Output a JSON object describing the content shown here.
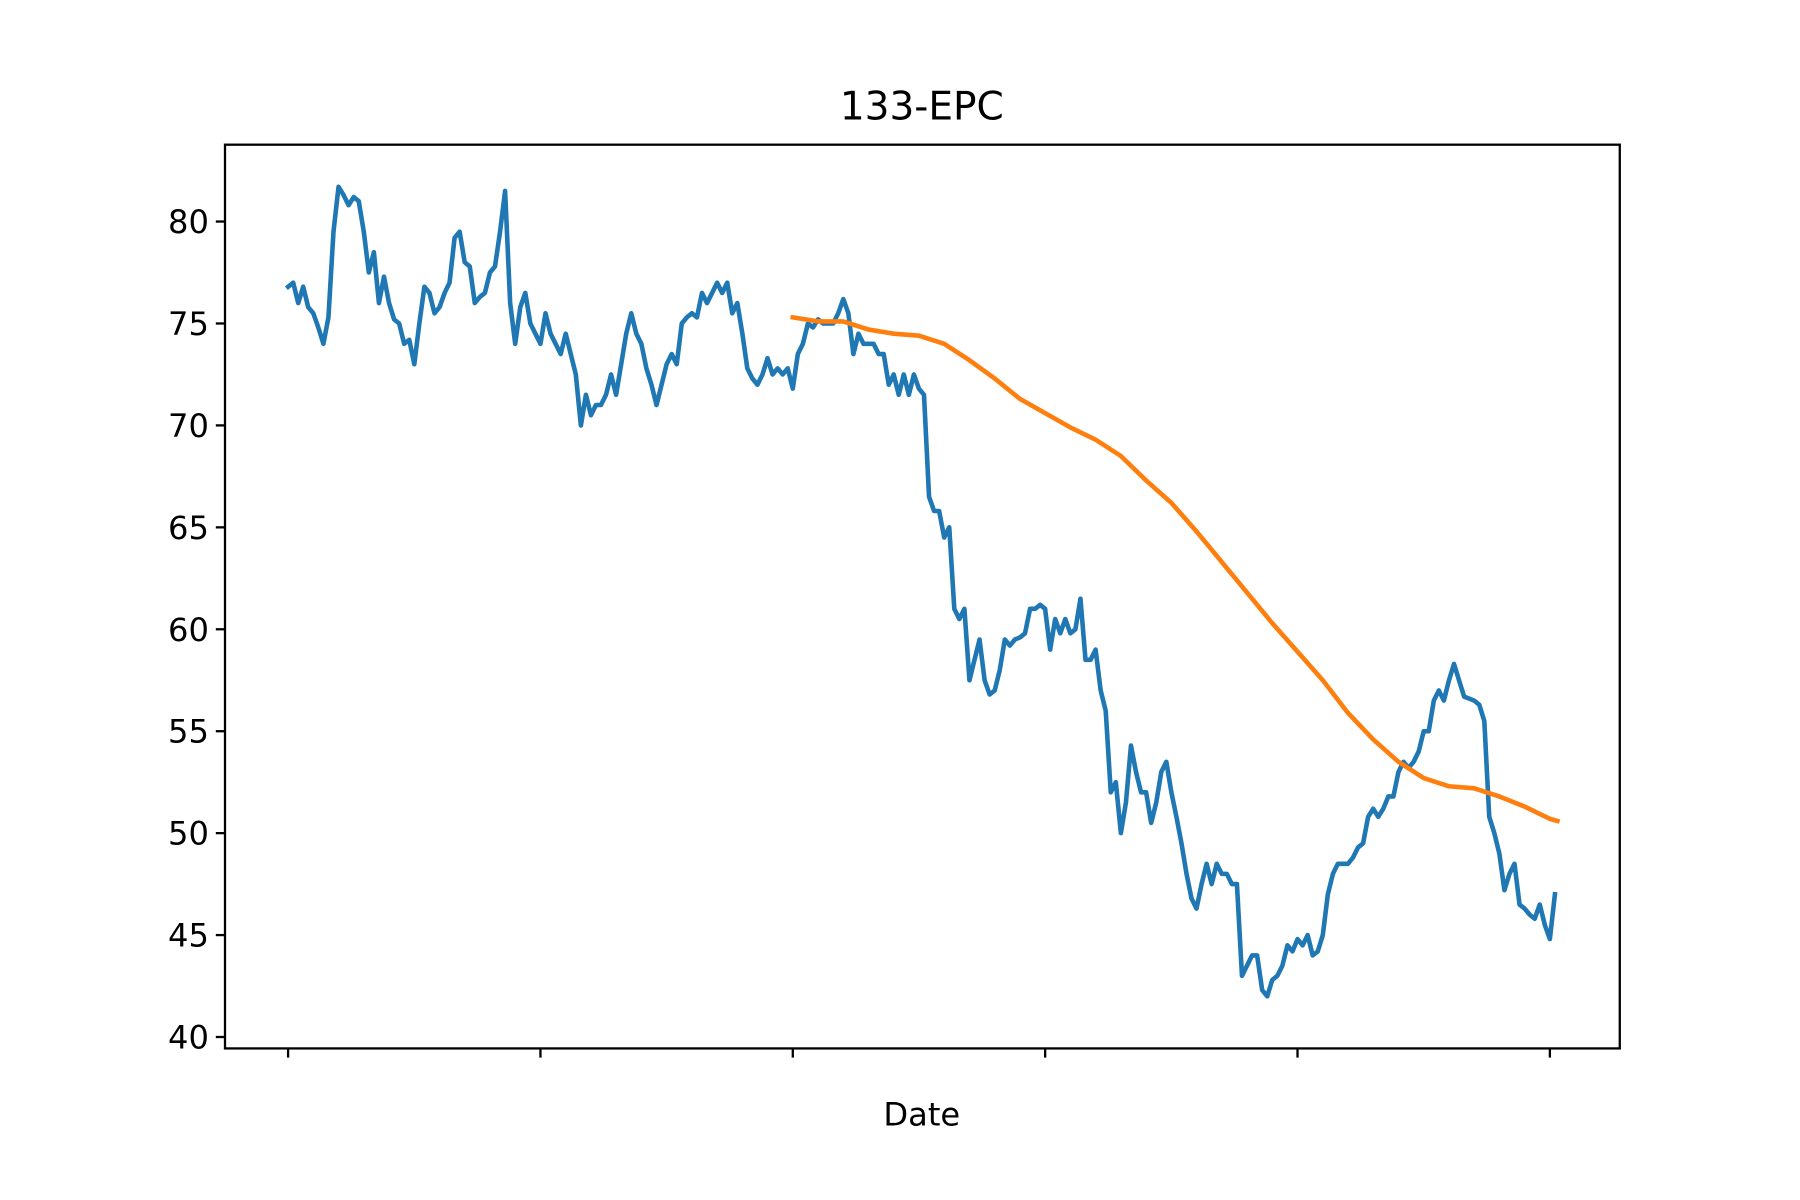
{
  "chart_data": {
    "type": "line",
    "title": "133-EPC",
    "xlabel": "Date",
    "xlim": [
      -25,
      527.7
    ],
    "xticks": [
      0,
      100,
      200,
      300,
      400,
      500
    ],
    "ylim": [
      39.44,
      83.77
    ],
    "yticks": [
      40,
      45,
      50,
      55,
      60,
      65,
      70,
      75,
      80
    ],
    "series": [
      {
        "color": "#1f77b4",
        "x": [
          0,
          2,
          4,
          6,
          8,
          10,
          12,
          14,
          16,
          18,
          20,
          22,
          24,
          26,
          28,
          30,
          32,
          34,
          36,
          38,
          40,
          42,
          44,
          46,
          48,
          50,
          52,
          54,
          56,
          58,
          60,
          62,
          64,
          66,
          68,
          70,
          72,
          74,
          76,
          78,
          80,
          82,
          84,
          86,
          88,
          90,
          92,
          94,
          96,
          98,
          100,
          102,
          104,
          106,
          108,
          110,
          112,
          114,
          116,
          118,
          120,
          122,
          124,
          126,
          128,
          130,
          132,
          134,
          136,
          138,
          140,
          142,
          144,
          146,
          148,
          150,
          152,
          154,
          156,
          158,
          160,
          162,
          164,
          166,
          168,
          170,
          172,
          174,
          176,
          178,
          180,
          182,
          184,
          186,
          188,
          190,
          192,
          194,
          196,
          198,
          200,
          202,
          204,
          206,
          208,
          210,
          212,
          214,
          216,
          218,
          220,
          222,
          224,
          226,
          228,
          230,
          232,
          234,
          236,
          238,
          240,
          242,
          244,
          246,
          248,
          250,
          252,
          254,
          256,
          258,
          260,
          262,
          264,
          266,
          268,
          270,
          272,
          274,
          276,
          278,
          280,
          282,
          284,
          286,
          288,
          290,
          292,
          294,
          296,
          298,
          300,
          302,
          304,
          306,
          308,
          310,
          312,
          314,
          316,
          318,
          320,
          322,
          324,
          326,
          328,
          330,
          332,
          334,
          336,
          338,
          340,
          342,
          344,
          346,
          348,
          350,
          352,
          354,
          356,
          358,
          360,
          362,
          364,
          366,
          368,
          370,
          372,
          374,
          376,
          378,
          380,
          382,
          384,
          386,
          388,
          390,
          392,
          394,
          396,
          398,
          400,
          402,
          404,
          406,
          408,
          410,
          412,
          414,
          416,
          418,
          420,
          422,
          424,
          426,
          428,
          430,
          432,
          434,
          436,
          438,
          440,
          442,
          444,
          446,
          448,
          450,
          452,
          454,
          456,
          458,
          460,
          462,
          464,
          466,
          468,
          470,
          472,
          474,
          476,
          478,
          480,
          482,
          484,
          486,
          488,
          490,
          492,
          494,
          496,
          498,
          500,
          502
        ],
        "values": [
          76.8,
          77,
          76,
          76.8,
          75.8,
          75.5,
          74.8,
          74,
          75.3,
          79.5,
          81.7,
          81.3,
          80.8,
          81.2,
          81,
          79.5,
          77.5,
          78.5,
          76,
          77.3,
          76,
          75.2,
          75,
          74,
          74.2,
          73,
          75,
          76.8,
          76.5,
          75.5,
          75.8,
          76.5,
          77,
          79.2,
          79.5,
          78,
          77.8,
          76,
          76.3,
          76.5,
          77.5,
          77.8,
          79.5,
          81.5,
          76,
          74,
          75.8,
          76.5,
          75,
          74.5,
          74,
          75.5,
          74.5,
          74,
          73.5,
          74.5,
          73.5,
          72.5,
          70,
          71.5,
          70.5,
          71,
          71,
          71.5,
          72.5,
          71.5,
          73,
          74.5,
          75.5,
          74.5,
          74,
          72.8,
          72,
          71,
          72,
          73,
          73.5,
          73,
          75,
          75.3,
          75.5,
          75.3,
          76.5,
          76,
          76.5,
          77,
          76.5,
          77,
          75.5,
          76,
          74.5,
          72.8,
          72.3,
          72,
          72.5,
          73.3,
          72.5,
          72.8,
          72.5,
          72.8,
          71.8,
          73.5,
          74,
          75,
          74.8,
          75.2,
          75,
          75,
          75,
          75.5,
          76.2,
          75.5,
          73.5,
          74.5,
          74,
          74,
          74,
          73.5,
          73.5,
          72,
          72.5,
          71.5,
          72.5,
          71.5,
          72.5,
          71.8,
          71.5,
          66.5,
          65.8,
          65.8,
          64.5,
          65,
          61,
          60.5,
          61,
          57.5,
          58.5,
          59.5,
          57.5,
          56.8,
          57,
          58,
          59.5,
          59.2,
          59.5,
          59.6,
          59.8,
          61,
          61,
          61.2,
          61,
          59,
          60.5,
          59.8,
          60.5,
          59.8,
          60,
          61.5,
          58.5,
          58.5,
          59,
          57,
          56,
          52,
          52.5,
          50,
          51.5,
          54.3,
          53,
          52,
          52,
          50.5,
          51.5,
          53,
          53.5,
          52,
          50.8,
          49.5,
          48,
          46.8,
          46.3,
          47.5,
          48.5,
          47.5,
          48.5,
          48,
          48,
          47.5,
          47.5,
          43,
          43.5,
          44,
          44,
          42.3,
          42,
          42.8,
          43,
          43.5,
          44.5,
          44.2,
          44.8,
          44.5,
          45,
          44,
          44.2,
          45,
          47,
          48,
          48.5,
          48.5,
          48.5,
          48.8,
          49.3,
          49.5,
          50.8,
          51.2,
          50.8,
          51.2,
          51.8,
          51.8,
          53,
          53.5,
          53.2,
          53.5,
          54,
          55,
          55,
          56.5,
          57,
          56.5,
          57.5,
          58.3,
          57.5,
          56.7,
          56.6,
          56.5,
          56.3,
          55.5,
          50.8,
          50,
          49,
          47.2,
          48,
          48.5,
          46.5,
          46.3,
          46,
          45.8,
          46.5,
          45.5,
          44.8,
          47
        ]
      },
      {
        "color": "#ff7f0e",
        "x": [
          200,
          210,
          220,
          230,
          240,
          250,
          260,
          270,
          280,
          290,
          300,
          310,
          320,
          330,
          340,
          350,
          360,
          370,
          380,
          390,
          400,
          410,
          420,
          430,
          440,
          450,
          460,
          470,
          480,
          490,
          500,
          503
        ],
        "values": [
          75.3,
          75.1,
          75.1,
          74.7,
          74.5,
          74.4,
          74.0,
          73.2,
          72.3,
          71.3,
          70.6,
          69.9,
          69.3,
          68.5,
          67.3,
          66.2,
          64.8,
          63.3,
          61.8,
          60.3,
          58.9,
          57.5,
          55.9,
          54.6,
          53.5,
          52.7,
          52.3,
          52.2,
          51.8,
          51.3,
          50.7,
          50.6
        ]
      }
    ]
  }
}
